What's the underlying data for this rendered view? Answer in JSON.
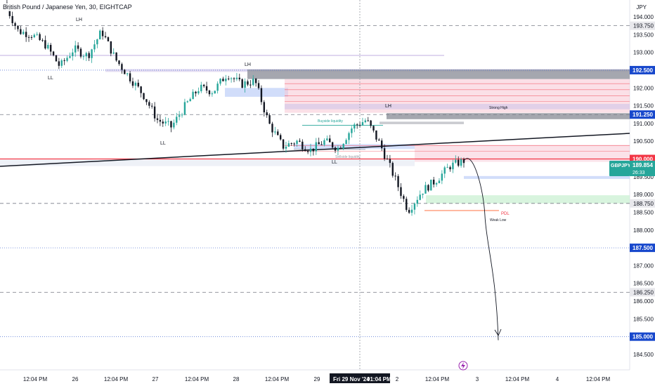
{
  "header": {
    "title": "British Pound / Japanese Yen, 30, EIGHTCAP",
    "currency": "JPY"
  },
  "colors": {
    "up": "#26a69a",
    "down": "#131722",
    "accent_blue": "#2962ff",
    "level_blue": "#1848cc",
    "level_red": "#f23645",
    "zone_gray": "#9598a1",
    "zone_pink": "#f7c6d3",
    "zone_purple": "#d1c4e9",
    "zone_green": "#c8f0d0",
    "ticker_bg": "#26a69a"
  },
  "symbol_tag": {
    "ticker": "GBPJPY",
    "price": "189.854",
    "countdown": "26:33"
  },
  "chart_data": {
    "type": "line",
    "title": "British Pound / Japanese Yen, 30, EIGHTCAP",
    "ylim": [
      184.1,
      194.55
    ],
    "y_ticks": [
      194.0,
      193.75,
      193.5,
      193.0,
      192.5,
      192.0,
      191.5,
      191.25,
      191.0,
      190.5,
      190.0,
      189.5,
      189.0,
      188.75,
      188.5,
      188.0,
      187.5,
      187.0,
      186.5,
      186.25,
      186.0,
      185.5,
      185.0,
      184.5
    ],
    "y_tick_labels": [
      "194.000",
      "193.750",
      "193.500",
      "193.000",
      "192.500",
      "192.000",
      "191.500",
      "191.250",
      "191.000",
      "190.500",
      "190.000",
      "189.500",
      "189.000",
      "188.750",
      "188.500",
      "188.000",
      "187.500",
      "187.000",
      "186.500",
      "186.250",
      "186.000",
      "185.500",
      "185.000",
      "184.500"
    ],
    "x_tick_labels": [
      "12:04 PM",
      "26",
      "12:04 PM",
      "27",
      "12:04 PM",
      "28",
      "12:04 PM",
      "29",
      "Fri 29 Nov '24",
      "01:04 PM",
      "2",
      "12:04 PM",
      "3",
      "12:04 PM",
      "4",
      "12:04 PM"
    ],
    "highlighted_labels": [
      "192.500",
      "191.250",
      "190.000",
      "187.500",
      "185.000"
    ],
    "price_path": [
      194.4,
      193.6,
      193.5,
      193.2,
      192.6,
      193.1,
      192.9,
      193.6,
      192.8,
      192.3,
      191.8,
      191.1,
      190.9,
      191.5,
      192.0,
      191.9,
      192.4,
      192.1,
      192.2,
      191.0,
      190.35,
      190.5,
      190.25,
      190.5,
      190.3,
      190.9,
      191.1,
      190.4,
      189.5,
      188.55,
      189.1,
      189.4,
      189.8,
      189.95
    ],
    "projection_path": [
      189.95,
      188.4,
      186.0,
      184.9
    ],
    "levels": [
      {
        "value": 193.75,
        "style": "dashed"
      },
      {
        "value": 192.5,
        "style": "dotted"
      },
      {
        "value": 191.25,
        "style": "dashed"
      },
      {
        "value": 190.0,
        "style": "solid-red"
      },
      {
        "value": 188.75,
        "style": "dashed"
      },
      {
        "value": 187.5,
        "style": "dotted"
      },
      {
        "value": 186.25,
        "style": "dashed"
      },
      {
        "value": 185.0,
        "style": "dotted"
      }
    ],
    "annotations": [
      "LH",
      "LL",
      "LL",
      "LH",
      "LL",
      "LH",
      "Strong High",
      "Buyside liquidity",
      "Sellside liquidity",
      "PDL",
      "Weak Low"
    ],
    "grid": false
  }
}
